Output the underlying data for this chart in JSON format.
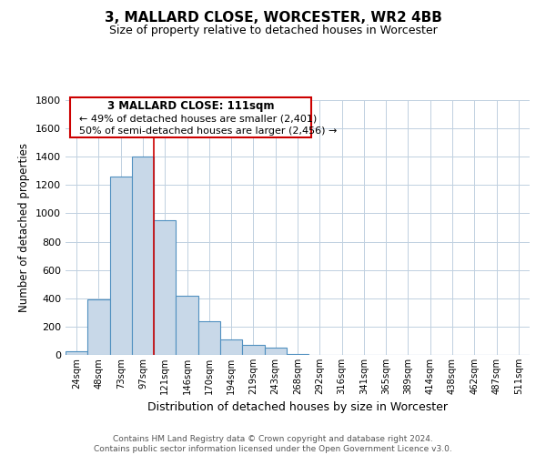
{
  "title": "3, MALLARD CLOSE, WORCESTER, WR2 4BB",
  "subtitle": "Size of property relative to detached houses in Worcester",
  "xlabel": "Distribution of detached houses by size in Worcester",
  "ylabel": "Number of detached properties",
  "footer_line1": "Contains HM Land Registry data © Crown copyright and database right 2024.",
  "footer_line2": "Contains public sector information licensed under the Open Government Licence v3.0.",
  "annotation_title": "3 MALLARD CLOSE: 111sqm",
  "annotation_line2": "← 49% of detached houses are smaller (2,401)",
  "annotation_line3": "50% of semi-detached houses are larger (2,456) →",
  "bar_color": "#c8d8e8",
  "bar_edge_color": "#5090c0",
  "annotation_box_edge": "#cc0000",
  "vline_color": "#cc0000",
  "categories": [
    "24sqm",
    "48sqm",
    "73sqm",
    "97sqm",
    "121sqm",
    "146sqm",
    "170sqm",
    "194sqm",
    "219sqm",
    "243sqm",
    "268sqm",
    "292sqm",
    "316sqm",
    "341sqm",
    "365sqm",
    "389sqm",
    "414sqm",
    "438sqm",
    "462sqm",
    "487sqm",
    "511sqm"
  ],
  "values": [
    25,
    390,
    1260,
    1400,
    950,
    415,
    235,
    110,
    70,
    50,
    5,
    2,
    1,
    0,
    0,
    0,
    0,
    0,
    0,
    0,
    0
  ],
  "vline_x": 3.5,
  "ylim": [
    0,
    1800
  ],
  "yticks": [
    0,
    200,
    400,
    600,
    800,
    1000,
    1200,
    1400,
    1600,
    1800
  ],
  "bg_color": "#ffffff",
  "grid_color": "#c0d0e0"
}
